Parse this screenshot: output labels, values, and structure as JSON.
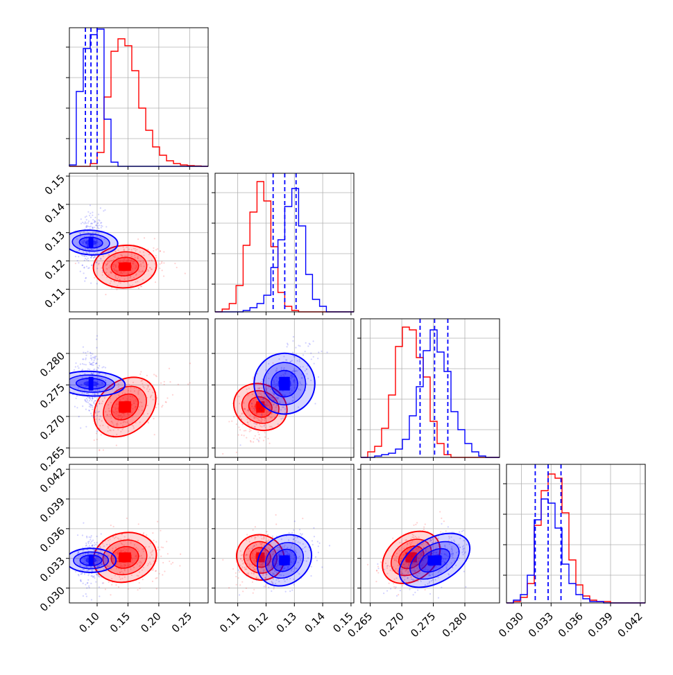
{
  "colors": {
    "blue": "#0000ff",
    "red": "#ff0000",
    "grid": "#b0b0b0"
  },
  "chart_data": {
    "type": "corner",
    "grid": true,
    "series": [
      {
        "color": "blue"
      },
      {
        "color": "red"
      }
    ],
    "parameters": [
      {
        "range": [
          0.055,
          0.28
        ],
        "ticks": [
          0.1,
          0.15,
          0.2,
          0.25
        ],
        "tick_labels": [
          "0.10",
          "0.15",
          "0.20",
          "0.25"
        ]
      },
      {
        "range": [
          0.102,
          0.151
        ],
        "ticks": [
          0.11,
          0.12,
          0.13,
          0.14,
          0.15
        ],
        "tick_labels": [
          "0.11",
          "0.12",
          "0.13",
          "0.14",
          "0.15"
        ]
      },
      {
        "range": [
          0.2635,
          0.2855
        ],
        "ticks": [
          0.265,
          0.27,
          0.275,
          0.28
        ],
        "tick_labels": [
          "0.265",
          "0.270",
          "0.275",
          "0.280"
        ]
      },
      {
        "range": [
          0.0285,
          0.0425
        ],
        "ticks": [
          0.03,
          0.033,
          0.036,
          0.039,
          0.042
        ],
        "tick_labels": [
          "0.030",
          "0.033",
          "0.036",
          "0.039",
          "0.042"
        ]
      }
    ],
    "histograms": [
      {
        "edges": [
          0.055,
          0.0662,
          0.0775,
          0.0888,
          0.1,
          0.1112,
          0.1225,
          0.1338,
          0.145,
          0.1562,
          0.1675,
          0.1788,
          0.19,
          0.2012,
          0.2125,
          0.2238,
          0.235,
          0.2462,
          0.2575,
          0.2688,
          0.28
        ],
        "blue": [
          0.01,
          0.54,
          0.85,
          0.95,
          0.99,
          0.34,
          0.03,
          0,
          0,
          0,
          0,
          0,
          0,
          0,
          0,
          0,
          0,
          0,
          0,
          0
        ],
        "red": [
          0,
          0,
          0,
          0.02,
          0.1,
          0.5,
          0.83,
          0.92,
          0.87,
          0.69,
          0.42,
          0.26,
          0.14,
          0.08,
          0.04,
          0.02,
          0.01,
          0.005,
          0.003,
          0
        ],
        "blue_quantiles": [
          0.081,
          0.09,
          0.1
        ]
      },
      {
        "edges": [
          0.102,
          0.1045,
          0.107,
          0.1094,
          0.1119,
          0.1143,
          0.1168,
          0.1192,
          0.1217,
          0.1242,
          0.1266,
          0.1291,
          0.1315,
          0.134,
          0.1364,
          0.1389,
          0.1413,
          0.1438,
          0.1462,
          0.1487,
          0.151
        ],
        "blue": [
          0,
          0,
          0,
          0,
          0.01,
          0.03,
          0.06,
          0.12,
          0.32,
          0.52,
          0.76,
          0.89,
          0.62,
          0.27,
          0.09,
          0.04,
          0,
          0,
          0,
          0
        ],
        "red": [
          0,
          0.02,
          0.06,
          0.19,
          0.48,
          0.72,
          0.94,
          0.8,
          0.47,
          0.14,
          0.04,
          0.01,
          0,
          0,
          0,
          0,
          0,
          0,
          0,
          0
        ],
        "blue_quantiles": [
          0.1225,
          0.1266,
          0.1306
        ]
      },
      {
        "edges": [
          0.2635,
          0.2646,
          0.2657,
          0.2668,
          0.2679,
          0.269,
          0.2701,
          0.2712,
          0.2723,
          0.2734,
          0.2745,
          0.2756,
          0.2767,
          0.2778,
          0.2789,
          0.28,
          0.2811,
          0.2822,
          0.2833,
          0.2844,
          0.2855
        ],
        "blue": [
          0,
          0,
          0.01,
          0.02,
          0.03,
          0.06,
          0.13,
          0.3,
          0.51,
          0.77,
          0.92,
          0.76,
          0.62,
          0.33,
          0.2,
          0.1,
          0.04,
          0.01,
          0,
          0
        ],
        "red": [
          0,
          0.04,
          0.08,
          0.21,
          0.45,
          0.8,
          0.94,
          0.92,
          0.72,
          0.58,
          0.26,
          0.1,
          0.02,
          0,
          0,
          0,
          0,
          0,
          0,
          0
        ],
        "blue_quantiles": [
          0.2729,
          0.2752,
          0.2773
        ]
      },
      {
        "edges": [
          0.0285,
          0.0292,
          0.0299,
          0.0306,
          0.0313,
          0.032,
          0.0327,
          0.0334,
          0.0341,
          0.0348,
          0.0355,
          0.0362,
          0.0369,
          0.0376,
          0.0383,
          0.039,
          0.0397,
          0.0404,
          0.0411,
          0.0418,
          0.0425
        ],
        "blue": [
          0,
          0.02,
          0.06,
          0.2,
          0.6,
          0.75,
          0.72,
          0.54,
          0.28,
          0.14,
          0.06,
          0.03,
          0.01,
          0.01,
          0,
          0,
          0,
          0,
          0,
          0
        ],
        "red": [
          0,
          0.01,
          0.04,
          0.14,
          0.56,
          0.81,
          0.93,
          0.9,
          0.65,
          0.31,
          0.13,
          0.05,
          0.02,
          0.01,
          0.01,
          0,
          0,
          0,
          0,
          0
        ],
        "blue_quantiles": [
          0.0314,
          0.0327,
          0.034
        ]
      }
    ],
    "pairs": [
      {
        "x": 0,
        "y": 1,
        "blue": {
          "mean": [
            0.09,
            0.1265
          ],
          "std": [
            0.0085,
            0.0042
          ],
          "corr": 0.1
        },
        "red": {
          "mean": [
            0.145,
            0.118
          ],
          "std": [
            0.022,
            0.0033
          ],
          "corr": 0.05
        }
      },
      {
        "x": 0,
        "y": 2,
        "blue": {
          "mean": [
            0.09,
            0.2752
          ],
          "std": [
            0.0085,
            0.0024
          ],
          "corr": 0.1
        },
        "red": {
          "mean": [
            0.145,
            0.2715
          ],
          "std": [
            0.022,
            0.002
          ],
          "corr": 0.55
        }
      },
      {
        "x": 1,
        "y": 2,
        "blue": {
          "mean": [
            0.1265,
            0.2752
          ],
          "std": [
            0.0042,
            0.0024
          ],
          "corr": 0.6
        },
        "red": {
          "mean": [
            0.118,
            0.2715
          ],
          "std": [
            0.0033,
            0.002
          ],
          "corr": 0.3
        }
      },
      {
        "x": 0,
        "y": 3,
        "blue": {
          "mean": [
            0.09,
            0.0328
          ],
          "std": [
            0.0085,
            0.0011
          ],
          "corr": 0.0
        },
        "red": {
          "mean": [
            0.145,
            0.0331
          ],
          "std": [
            0.022,
            0.0011
          ],
          "corr": 0.1
        }
      },
      {
        "x": 1,
        "y": 3,
        "blue": {
          "mean": [
            0.1265,
            0.0328
          ],
          "std": [
            0.0042,
            0.0011
          ],
          "corr": 0.3
        },
        "red": {
          "mean": [
            0.118,
            0.0331
          ],
          "std": [
            0.0033,
            0.0011
          ],
          "corr": 0.2
        }
      },
      {
        "x": 2,
        "y": 3,
        "blue": {
          "mean": [
            0.2752,
            0.0328
          ],
          "std": [
            0.0024,
            0.0011
          ],
          "corr": 0.55
        },
        "red": {
          "mean": [
            0.2715,
            0.0331
          ],
          "std": [
            0.002,
            0.0011
          ],
          "corr": 0.45
        }
      }
    ]
  }
}
